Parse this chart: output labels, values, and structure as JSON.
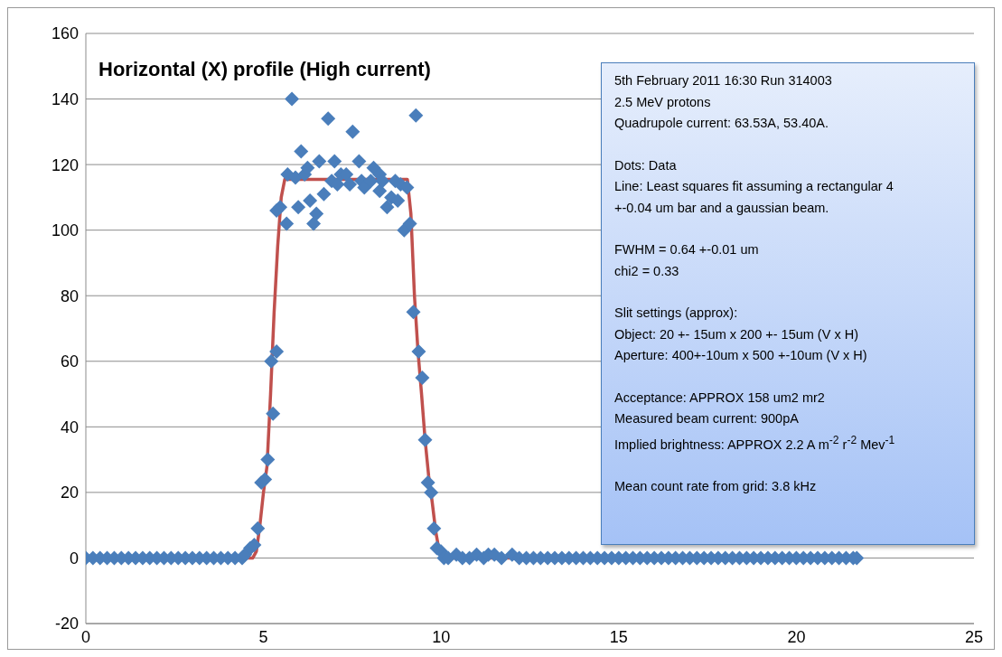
{
  "chart_data": {
    "type": "scatter",
    "title": "Horizontal (X) profile (High current)",
    "xlim": [
      0,
      25
    ],
    "xticks": [
      0,
      5,
      10,
      15,
      20,
      25
    ],
    "ylim": [
      -20,
      160
    ],
    "yticks": [
      -20,
      0,
      20,
      40,
      60,
      80,
      100,
      120,
      140,
      160
    ],
    "grid": "y",
    "legend": false,
    "series": [
      {
        "marker": "diamond",
        "color": "#4a7ebb",
        "x": [
          0,
          0.2,
          0.4,
          0.6,
          0.8,
          1.0,
          1.2,
          1.4,
          1.6,
          1.8,
          2.0,
          2.2,
          2.4,
          2.6,
          2.8,
          3.0,
          3.2,
          3.4,
          3.6,
          3.8,
          4.0,
          4.2,
          4.4,
          4.48,
          4.63,
          4.74,
          4.84,
          4.94,
          5.04,
          5.12,
          5.27,
          5.22,
          5.37,
          5.47,
          5.37,
          5.65,
          5.68,
          5.8,
          5.9,
          5.98,
          6.06,
          6.16,
          6.24,
          6.31,
          6.41,
          6.49,
          6.57,
          6.7,
          6.82,
          6.92,
          7.0,
          7.08,
          7.18,
          7.33,
          7.43,
          7.51,
          7.69,
          7.76,
          7.84,
          8.02,
          8.1,
          8.27,
          8.27,
          8.35,
          8.48,
          8.6,
          8.71,
          8.78,
          8.86,
          8.96,
          9.04,
          9.12,
          9.22,
          9.29,
          9.37,
          9.47,
          9.55,
          9.63,
          9.72,
          9.8,
          9.88,
          10.0,
          10.08,
          10.2,
          10.43,
          10.6,
          10.8,
          11.0,
          11.2,
          11.33,
          11.5,
          11.7,
          12.0,
          12.2,
          12.4,
          12.6,
          12.8,
          13.0,
          13.2,
          13.4,
          13.6,
          13.8,
          14.0,
          14.2,
          14.4,
          14.6,
          14.8,
          15.0,
          15.2,
          15.4,
          15.6,
          15.8,
          16.0,
          16.2,
          16.4,
          16.6,
          16.8,
          17.0,
          17.2,
          17.4,
          17.6,
          17.8,
          18.0,
          18.2,
          18.4,
          18.6,
          18.8,
          19.0,
          19.2,
          19.4,
          19.6,
          19.8,
          20.0,
          20.2,
          20.4,
          20.6,
          20.8,
          21.0,
          21.2,
          21.4,
          21.6,
          21.7
        ],
        "values": [
          0,
          0,
          0,
          0,
          0,
          0,
          0,
          0,
          0,
          0,
          0,
          0,
          0,
          0,
          0,
          0,
          0,
          0,
          0,
          0,
          0,
          0,
          0,
          1,
          3,
          4,
          9,
          23,
          24,
          30,
          44,
          60,
          63,
          107,
          106,
          102,
          117,
          140,
          116,
          107,
          124,
          117,
          119,
          109,
          102,
          105,
          121,
          111,
          134,
          115,
          121,
          114,
          117,
          117,
          114,
          130,
          121,
          115,
          113,
          115,
          119,
          117,
          112,
          115,
          107,
          110,
          115,
          109,
          114,
          100,
          113,
          102,
          75,
          135,
          63,
          55,
          36,
          23,
          20,
          9,
          3,
          2,
          0,
          0,
          1,
          0,
          0,
          1,
          0,
          1,
          1,
          0,
          1,
          0,
          0,
          0,
          0,
          0,
          0,
          0,
          0,
          0,
          0,
          0,
          0,
          0,
          0,
          0,
          0,
          0,
          0,
          0,
          0,
          0,
          0,
          0,
          0,
          0,
          0,
          0,
          0,
          0,
          0,
          0,
          0,
          0,
          0,
          0,
          0,
          0,
          0,
          0,
          0,
          0,
          0,
          0,
          0,
          0,
          0,
          0,
          0,
          0
        ]
      },
      {
        "type": "line",
        "marker": "none",
        "line_style": "solid",
        "color": "#c0504d",
        "x": [
          0,
          4.7,
          4.8,
          4.9,
          5.0,
          5.1,
          5.2,
          5.3,
          5.4,
          5.5,
          5.6,
          9.05,
          9.15,
          9.25,
          9.35,
          9.45,
          9.55,
          9.65,
          9.75,
          9.85,
          9.95,
          10.05,
          21.7
        ],
        "values": [
          0,
          0,
          2,
          10,
          20,
          28,
          50,
          75,
          95,
          110,
          115.5,
          115.5,
          105,
          80,
          63,
          50,
          36,
          25,
          17,
          8,
          2,
          0,
          0
        ]
      }
    ],
    "annotations": [
      "5th February 2011  16:30  Run 314003\n2.5 MeV protons\nQuadrupole current:  63.53A, 53.40A.",
      "Dots:  Data\nLine:  Least squares fit assuming a rectangular 4 +-0.04 um bar and a gaussian beam.",
      "FWHM = 0.64 +-0.01 um\nchi2 = 0.33",
      "Slit settings (approx):\nObject: 20 +- 15um x 200 +- 15um (V x H)\nAperture: 400+-10um x 500 +-10um (V x H)",
      "Acceptance:  APPROX 158 um2 mr2\nMeasured beam current:  900pA\nImplied brightness:  APPROX 2.2 A m$^{-2}$ r$^{-2}$ Mev$^{-1}$",
      "Mean count rate from grid: 3.8 kHz"
    ]
  }
}
